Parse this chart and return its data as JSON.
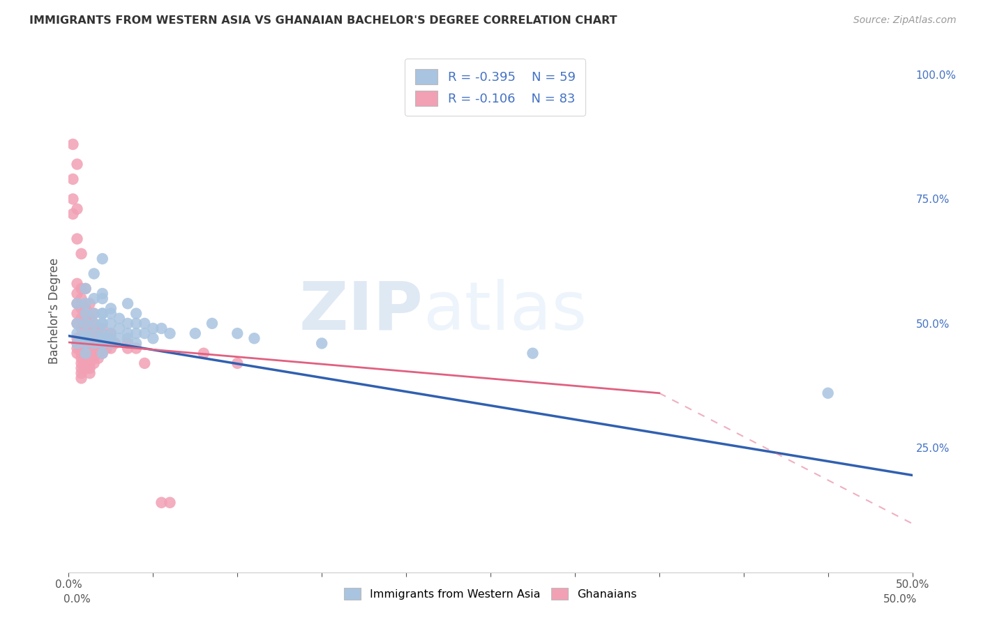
{
  "title": "IMMIGRANTS FROM WESTERN ASIA VS GHANAIAN BACHELOR'S DEGREE CORRELATION CHART",
  "source": "Source: ZipAtlas.com",
  "ylabel": "Bachelor's Degree",
  "right_yticks": [
    "100.0%",
    "75.0%",
    "50.0%",
    "25.0%"
  ],
  "right_ytick_vals": [
    1.0,
    0.75,
    0.5,
    0.25
  ],
  "watermark_zip": "ZIP",
  "watermark_atlas": "atlas",
  "legend_blue_r": "-0.395",
  "legend_blue_n": "59",
  "legend_pink_r": "-0.106",
  "legend_pink_n": "83",
  "legend_label_blue": "Immigrants from Western Asia",
  "legend_label_pink": "Ghanaians",
  "blue_color": "#a8c4e0",
  "pink_color": "#f2a0b4",
  "blue_line_color": "#3060b0",
  "pink_line_color": "#e06080",
  "blue_scatter": [
    [
      0.001,
      0.54
    ],
    [
      0.001,
      0.5
    ],
    [
      0.001,
      0.48
    ],
    [
      0.001,
      0.46
    ],
    [
      0.002,
      0.57
    ],
    [
      0.002,
      0.54
    ],
    [
      0.002,
      0.52
    ],
    [
      0.002,
      0.5
    ],
    [
      0.002,
      0.48
    ],
    [
      0.002,
      0.47
    ],
    [
      0.002,
      0.46
    ],
    [
      0.002,
      0.44
    ],
    [
      0.003,
      0.6
    ],
    [
      0.003,
      0.55
    ],
    [
      0.003,
      0.52
    ],
    [
      0.003,
      0.5
    ],
    [
      0.003,
      0.48
    ],
    [
      0.003,
      0.46
    ],
    [
      0.004,
      0.63
    ],
    [
      0.004,
      0.56
    ],
    [
      0.004,
      0.52
    ],
    [
      0.004,
      0.5
    ],
    [
      0.004,
      0.48
    ],
    [
      0.004,
      0.46
    ],
    [
      0.004,
      0.55
    ],
    [
      0.004,
      0.52
    ],
    [
      0.004,
      0.5
    ],
    [
      0.004,
      0.47
    ],
    [
      0.004,
      0.44
    ],
    [
      0.005,
      0.53
    ],
    [
      0.005,
      0.5
    ],
    [
      0.005,
      0.48
    ],
    [
      0.005,
      0.46
    ],
    [
      0.005,
      0.52
    ],
    [
      0.005,
      0.47
    ],
    [
      0.006,
      0.51
    ],
    [
      0.006,
      0.49
    ],
    [
      0.006,
      0.47
    ],
    [
      0.007,
      0.54
    ],
    [
      0.007,
      0.5
    ],
    [
      0.007,
      0.48
    ],
    [
      0.007,
      0.47
    ],
    [
      0.008,
      0.52
    ],
    [
      0.008,
      0.5
    ],
    [
      0.008,
      0.48
    ],
    [
      0.008,
      0.46
    ],
    [
      0.009,
      0.5
    ],
    [
      0.009,
      0.48
    ],
    [
      0.01,
      0.49
    ],
    [
      0.01,
      0.47
    ],
    [
      0.011,
      0.49
    ],
    [
      0.012,
      0.48
    ],
    [
      0.015,
      0.48
    ],
    [
      0.017,
      0.5
    ],
    [
      0.02,
      0.48
    ],
    [
      0.022,
      0.47
    ],
    [
      0.03,
      0.46
    ],
    [
      0.055,
      0.44
    ],
    [
      0.09,
      0.36
    ]
  ],
  "pink_scatter": [
    [
      0.0005,
      0.86
    ],
    [
      0.0005,
      0.79
    ],
    [
      0.0005,
      0.75
    ],
    [
      0.0005,
      0.72
    ],
    [
      0.001,
      0.82
    ],
    [
      0.001,
      0.73
    ],
    [
      0.001,
      0.67
    ],
    [
      0.001,
      0.58
    ],
    [
      0.001,
      0.56
    ],
    [
      0.001,
      0.54
    ],
    [
      0.001,
      0.52
    ],
    [
      0.001,
      0.5
    ],
    [
      0.001,
      0.47
    ],
    [
      0.001,
      0.46
    ],
    [
      0.001,
      0.45
    ],
    [
      0.001,
      0.44
    ],
    [
      0.0015,
      0.64
    ],
    [
      0.0015,
      0.57
    ],
    [
      0.0015,
      0.55
    ],
    [
      0.0015,
      0.53
    ],
    [
      0.0015,
      0.51
    ],
    [
      0.0015,
      0.49
    ],
    [
      0.0015,
      0.47
    ],
    [
      0.0015,
      0.46
    ],
    [
      0.0015,
      0.45
    ],
    [
      0.0015,
      0.44
    ],
    [
      0.0015,
      0.43
    ],
    [
      0.0015,
      0.42
    ],
    [
      0.0015,
      0.41
    ],
    [
      0.0015,
      0.4
    ],
    [
      0.0015,
      0.39
    ],
    [
      0.002,
      0.57
    ],
    [
      0.002,
      0.53
    ],
    [
      0.002,
      0.51
    ],
    [
      0.002,
      0.49
    ],
    [
      0.002,
      0.47
    ],
    [
      0.002,
      0.46
    ],
    [
      0.002,
      0.45
    ],
    [
      0.002,
      0.44
    ],
    [
      0.002,
      0.43
    ],
    [
      0.002,
      0.42
    ],
    [
      0.002,
      0.41
    ],
    [
      0.0025,
      0.54
    ],
    [
      0.0025,
      0.51
    ],
    [
      0.0025,
      0.49
    ],
    [
      0.0025,
      0.47
    ],
    [
      0.0025,
      0.46
    ],
    [
      0.0025,
      0.45
    ],
    [
      0.0025,
      0.44
    ],
    [
      0.0025,
      0.42
    ],
    [
      0.0025,
      0.41
    ],
    [
      0.0025,
      0.4
    ],
    [
      0.003,
      0.52
    ],
    [
      0.003,
      0.5
    ],
    [
      0.003,
      0.48
    ],
    [
      0.003,
      0.46
    ],
    [
      0.003,
      0.45
    ],
    [
      0.003,
      0.44
    ],
    [
      0.003,
      0.43
    ],
    [
      0.003,
      0.42
    ],
    [
      0.0035,
      0.49
    ],
    [
      0.0035,
      0.47
    ],
    [
      0.0035,
      0.46
    ],
    [
      0.0035,
      0.45
    ],
    [
      0.0035,
      0.44
    ],
    [
      0.0035,
      0.43
    ],
    [
      0.004,
      0.49
    ],
    [
      0.004,
      0.46
    ],
    [
      0.004,
      0.45
    ],
    [
      0.004,
      0.44
    ],
    [
      0.0045,
      0.47
    ],
    [
      0.0045,
      0.45
    ],
    [
      0.005,
      0.48
    ],
    [
      0.005,
      0.45
    ],
    [
      0.0055,
      0.46
    ],
    [
      0.007,
      0.46
    ],
    [
      0.007,
      0.45
    ],
    [
      0.008,
      0.45
    ],
    [
      0.009,
      0.42
    ],
    [
      0.011,
      0.14
    ],
    [
      0.012,
      0.14
    ],
    [
      0.016,
      0.44
    ],
    [
      0.02,
      0.42
    ]
  ],
  "xlim": [
    0.0,
    0.1
  ],
  "ylim": [
    0.0,
    1.05
  ],
  "blue_trend_x": [
    0.0,
    0.1
  ],
  "blue_trend_y": [
    0.475,
    0.195
  ],
  "pink_trend_x": [
    0.0,
    0.07
  ],
  "pink_trend_y": [
    0.462,
    0.36
  ],
  "background_color": "#ffffff",
  "grid_color": "#cccccc",
  "title_color": "#333333",
  "right_axis_color": "#4472c4",
  "legend_text_color": "#4472c4"
}
